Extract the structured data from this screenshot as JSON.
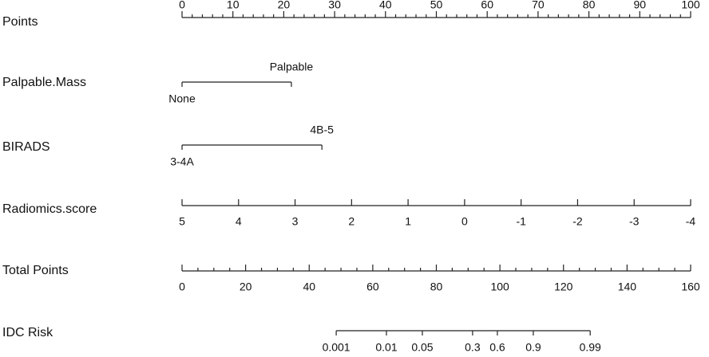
{
  "chart_data": {
    "type": "nomogram",
    "rows": [
      {
        "label": "Points",
        "xlim": [
          0,
          100
        ],
        "xticks": [
          0,
          10,
          20,
          30,
          40,
          50,
          60,
          70,
          80,
          90,
          100
        ],
        "minor_ticks": [
          2,
          4,
          6,
          8,
          12,
          14,
          16,
          18,
          22,
          24,
          26,
          28,
          32,
          34,
          36,
          38,
          42,
          44,
          46,
          48,
          52,
          54,
          56,
          58,
          62,
          64,
          66,
          68,
          72,
          74,
          76,
          78,
          82,
          84,
          86,
          88,
          92,
          94,
          96,
          98
        ]
      },
      {
        "label": "Palpable.Mass",
        "xlim": [
          0,
          100
        ],
        "categories": [
          "None",
          "Palpable"
        ],
        "values": [
          0,
          21.5
        ]
      },
      {
        "label": "BIRADS",
        "xlim": [
          0,
          100
        ],
        "categories": [
          "3-4A",
          "4B-5"
        ],
        "values": [
          0,
          27.5
        ]
      },
      {
        "label": "Radiomics.score",
        "xlim": [
          5,
          -4
        ],
        "xticks": [
          5,
          4,
          3,
          2,
          1,
          0,
          -1,
          -2,
          -3,
          -4
        ]
      },
      {
        "label": "Total Points",
        "xlim": [
          0,
          160
        ],
        "xticks": [
          0,
          20,
          40,
          60,
          80,
          100,
          120,
          140,
          160
        ],
        "minor_ticks": [
          5,
          10,
          15,
          25,
          30,
          35,
          45,
          50,
          55,
          65,
          70,
          75,
          85,
          90,
          95,
          105,
          110,
          115,
          125,
          130,
          135,
          145,
          150,
          155
        ]
      },
      {
        "label": "IDC Risk",
        "xlim": [
          0,
          160
        ],
        "categories": [
          "0.001",
          "0.01",
          "0.05",
          "0.3",
          "0.6",
          "0.9",
          "0.99"
        ],
        "values": [
          48.5,
          64.3,
          75.6,
          91.4,
          99.2,
          110.5,
          128.4
        ]
      }
    ]
  }
}
